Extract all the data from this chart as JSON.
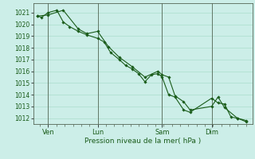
{
  "xlabel": "Pression niveau de la mer( hPa )",
  "background_color": "#cceee8",
  "grid_color": "#aaddcc",
  "line_color": "#1a5c1a",
  "text_color": "#1a5c1a",
  "spine_color": "#556655",
  "ylim": [
    1011.5,
    1021.8
  ],
  "yticks": [
    1012,
    1013,
    1014,
    1015,
    1016,
    1017,
    1018,
    1019,
    1020,
    1021
  ],
  "xtick_labels": [
    "Ven",
    "Lun",
    "Sam",
    "Dim"
  ],
  "xtick_positions": [
    0.07,
    0.3,
    0.6,
    0.83
  ],
  "vline_positions": [
    0.07,
    0.3,
    0.6,
    0.83
  ],
  "series1_x": [
    0.02,
    0.04,
    0.07,
    0.11,
    0.14,
    0.17,
    0.21,
    0.25,
    0.3,
    0.33,
    0.36,
    0.4,
    0.43,
    0.46,
    0.49,
    0.52,
    0.55,
    0.58,
    0.6,
    0.63,
    0.66,
    0.7,
    0.73,
    0.83,
    0.86,
    0.89,
    0.92,
    0.95,
    0.99
  ],
  "series1_y": [
    1020.7,
    1020.6,
    1021.0,
    1021.2,
    1020.2,
    1019.8,
    1019.4,
    1019.1,
    1018.8,
    1018.5,
    1017.6,
    1017.0,
    1016.5,
    1016.2,
    1015.8,
    1015.1,
    1015.7,
    1015.8,
    1015.5,
    1014.0,
    1013.8,
    1012.7,
    1012.5,
    1013.7,
    1013.3,
    1013.2,
    1012.1,
    1012.0,
    1011.7
  ],
  "series2_x": [
    0.02,
    0.07,
    0.14,
    0.21,
    0.25,
    0.3,
    0.35,
    0.4,
    0.46,
    0.52,
    0.58,
    0.6,
    0.63,
    0.66,
    0.7,
    0.73,
    0.83,
    0.86,
    0.89,
    0.95,
    0.99
  ],
  "series2_y": [
    1020.7,
    1020.8,
    1021.2,
    1019.6,
    1019.2,
    1019.4,
    1018.1,
    1017.2,
    1016.4,
    1015.5,
    1016.0,
    1015.7,
    1015.5,
    1013.9,
    1013.4,
    1012.7,
    1013.0,
    1013.8,
    1012.9,
    1012.0,
    1011.8
  ]
}
